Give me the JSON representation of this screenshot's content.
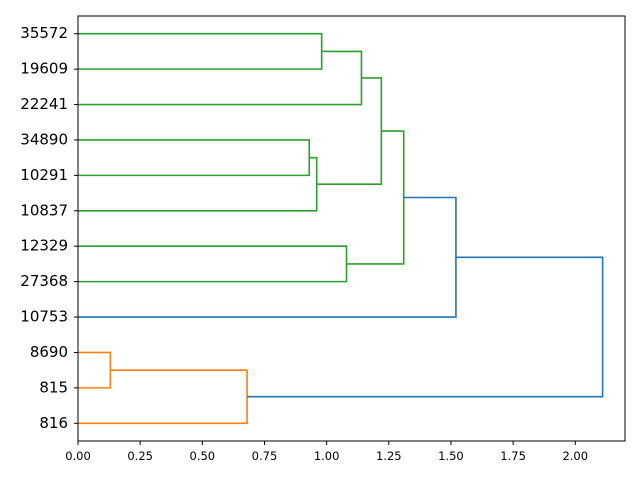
{
  "chart_data": {
    "type": "dendrogram",
    "orientation": "horizontal",
    "leaves": [
      "35572",
      "19609",
      "22241",
      "34890",
      "10291",
      "10837",
      "12329",
      "27368",
      "10753",
      "8690",
      "815",
      "816"
    ],
    "xlim": [
      0,
      2.2
    ],
    "xticks": [
      0.0,
      0.25,
      0.5,
      0.75,
      1.0,
      1.25,
      1.5,
      1.75,
      2.0
    ],
    "xtick_labels": [
      "0.00",
      "0.25",
      "0.50",
      "0.75",
      "1.00",
      "1.25",
      "1.50",
      "1.75",
      "2.00"
    ],
    "merges": [
      {
        "a": "L:35572",
        "b": "L:19609",
        "height": 0.98,
        "color": "#2ca02c"
      },
      {
        "a": "M:0",
        "b": "L:22241",
        "height": 1.14,
        "color": "#2ca02c"
      },
      {
        "a": "L:34890",
        "b": "L:10291",
        "height": 0.93,
        "color": "#2ca02c"
      },
      {
        "a": "M:2",
        "b": "L:10837",
        "height": 0.96,
        "color": "#2ca02c"
      },
      {
        "a": "M:1",
        "b": "M:3",
        "height": 1.22,
        "color": "#2ca02c"
      },
      {
        "a": "L:12329",
        "b": "L:27368",
        "height": 1.08,
        "color": "#2ca02c"
      },
      {
        "a": "M:4",
        "b": "M:5",
        "height": 1.31,
        "color": "#2ca02c"
      },
      {
        "a": "M:6",
        "b": "L:10753",
        "height": 1.52,
        "color": "#1f77b4"
      },
      {
        "a": "L:8690",
        "b": "L:815",
        "height": 0.13,
        "color": "#ff7f0e"
      },
      {
        "a": "M:8",
        "b": "L:816",
        "height": 0.68,
        "color": "#ff7f0e"
      },
      {
        "a": "M:7",
        "b": "M:9",
        "height": 2.11,
        "color": "#1f77b4"
      }
    ],
    "colors": {
      "cluster_1": "#ff7f0e",
      "cluster_2": "#2ca02c",
      "above_threshold": "#1f77b4"
    },
    "grid": false,
    "legend": "none"
  }
}
